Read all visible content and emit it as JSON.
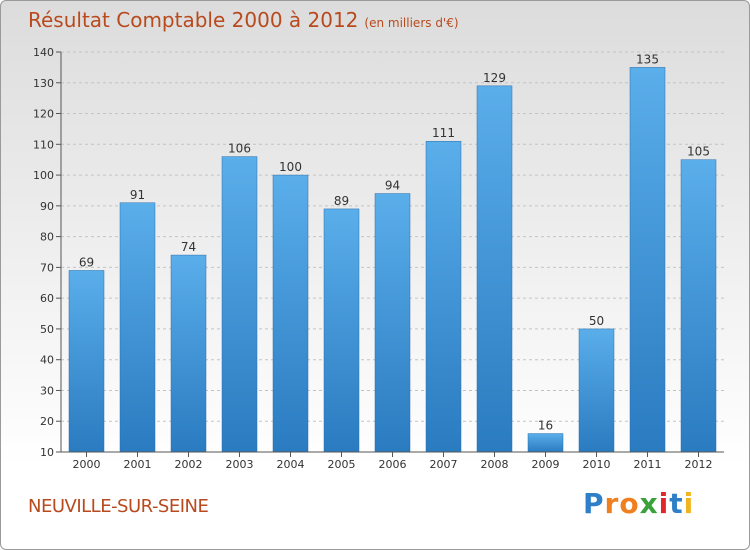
{
  "chart_data": {
    "type": "bar",
    "title": "Résultat Comptable 2000 à 2012",
    "subtitle": "(en milliers d'€)",
    "categories": [
      "2000",
      "2001",
      "2002",
      "2003",
      "2004",
      "2005",
      "2006",
      "2007",
      "2008",
      "2009",
      "2010",
      "2011",
      "2012"
    ],
    "values": [
      69,
      91,
      74,
      106,
      100,
      89,
      94,
      111,
      129,
      16,
      50,
      135,
      105
    ],
    "yticks": [
      10,
      20,
      30,
      40,
      50,
      60,
      70,
      80,
      90,
      100,
      110,
      120,
      130,
      140
    ],
    "ylim": [
      10,
      140
    ],
    "xlabel": "",
    "ylabel": "",
    "grid": true,
    "bar_color": "#4d9de0"
  },
  "footer": {
    "place": "NEUVILLE-SUR-SEINE",
    "logo": [
      {
        "char": "P",
        "color": "#2e7fc8"
      },
      {
        "char": "r",
        "color": "#f07f1e"
      },
      {
        "char": "o",
        "color": "#f07f1e"
      },
      {
        "char": "x",
        "color": "#3aa13b"
      },
      {
        "char": "i",
        "color": "#e3262b"
      },
      {
        "char": "t",
        "color": "#2e7fc8"
      },
      {
        "char": "i",
        "color": "#f0b41e"
      }
    ]
  }
}
